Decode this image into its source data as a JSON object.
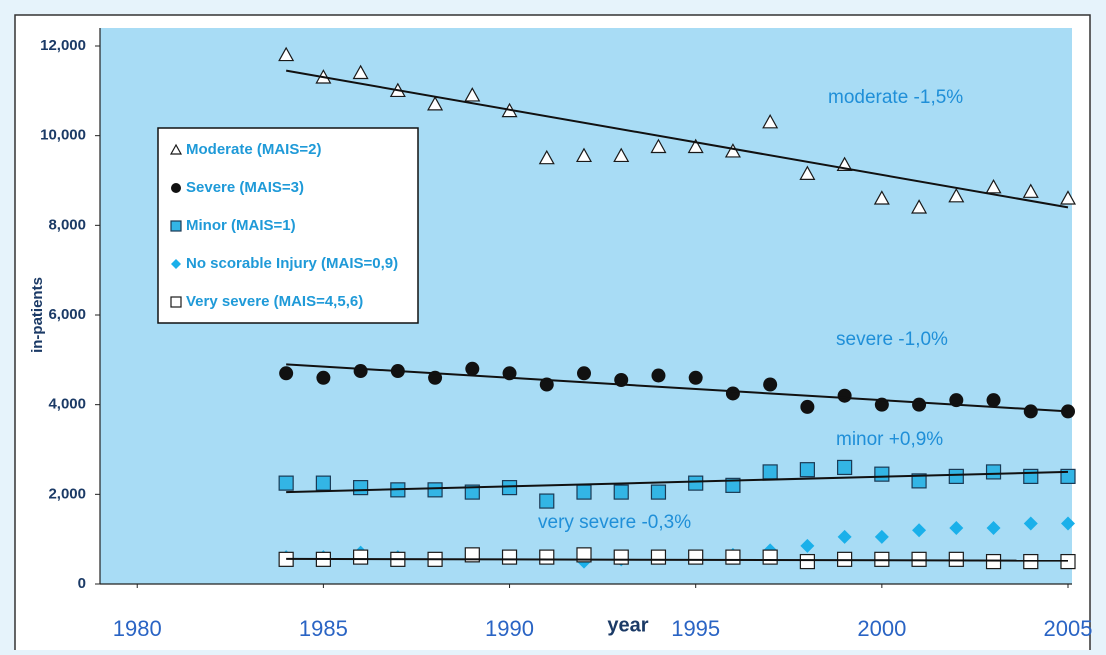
{
  "chart_data": {
    "type": "scatter",
    "xlabel": "year",
    "ylabel": "in-patients",
    "x": [
      1984,
      1985,
      1986,
      1987,
      1988,
      1989,
      1990,
      1991,
      1992,
      1993,
      1994,
      1995,
      1996,
      1997,
      1998,
      1999,
      2000,
      2001,
      2002,
      2003,
      2004,
      2005
    ],
    "xlim": [
      1979,
      2005
    ],
    "xticks": [
      1980,
      1985,
      1990,
      1995,
      2000,
      2005
    ],
    "ylim": [
      0,
      12000
    ],
    "yticks": [
      0,
      {
        "value": 2000,
        "label": "2,000"
      },
      {
        "value": 4000,
        "label": "4,000"
      },
      {
        "value": 6000,
        "label": "6,000"
      },
      {
        "value": 8000,
        "label": "8,000"
      },
      {
        "value": 10000,
        "label": "10,000"
      },
      {
        "value": 12000,
        "label": "12,000"
      }
    ],
    "trend_x": [
      1984,
      2005
    ],
    "series": [
      {
        "name": "Moderate (MAIS=2)",
        "marker": "triangle-open",
        "color": "#1a1a1a",
        "values": [
          11800,
          11300,
          11400,
          11000,
          10700,
          10900,
          10550,
          9500,
          9550,
          9550,
          9750,
          9750,
          9650,
          10300,
          9150,
          9350,
          8600,
          8400,
          8650,
          8850,
          8750,
          8600
        ],
        "trend": [
          11450,
          8400
        ]
      },
      {
        "name": "Severe (MAIS=3)",
        "marker": "circle",
        "color": "#111111",
        "values": [
          4700,
          4600,
          4750,
          4750,
          4600,
          4800,
          4700,
          4450,
          4700,
          4550,
          4650,
          4600,
          4250,
          4450,
          3950,
          4200,
          4000,
          4000,
          4100,
          4100,
          3850,
          3850
        ],
        "trend": [
          4900,
          3850
        ]
      },
      {
        "name": "Minor (MAIS=1)",
        "marker": "square",
        "color": "#33b5e5",
        "values": [
          2250,
          2250,
          2150,
          2100,
          2100,
          2050,
          2150,
          1850,
          2050,
          2050,
          2050,
          2250,
          2200,
          2500,
          2550,
          2600,
          2450,
          2300,
          2400,
          2500,
          2400,
          2400
        ],
        "trend": [
          2050,
          2500
        ]
      },
      {
        "name": "No scorable Injury (MAIS=0,9)",
        "marker": "diamond",
        "color": "#1ab0ea",
        "values": [
          600,
          600,
          700,
          600,
          550,
          650,
          600,
          600,
          500,
          550,
          600,
          600,
          650,
          750,
          850,
          1050,
          1050,
          1200,
          1250,
          1250,
          1350,
          1350
        ]
      },
      {
        "name": "Very severe (MAIS=4,5,6)",
        "marker": "square-open",
        "color": "#1a1a1a",
        "values": [
          550,
          550,
          600,
          550,
          550,
          650,
          600,
          600,
          650,
          600,
          600,
          600,
          600,
          600,
          500,
          550,
          550,
          550,
          550,
          500,
          500,
          500
        ],
        "trend": [
          560,
          520
        ]
      }
    ],
    "annotations": [
      "moderate -1,5%",
      "severe -1,0%",
      "minor +0,9%",
      "very severe -0,3%"
    ]
  }
}
